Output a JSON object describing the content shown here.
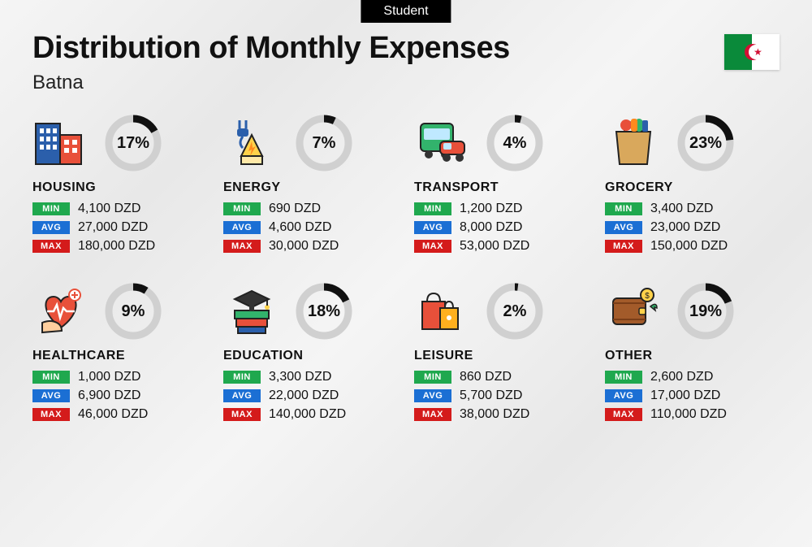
{
  "tag": "Student",
  "title": "Distribution of Monthly Expenses",
  "subtitle": "Batna",
  "currency": "DZD",
  "labels": {
    "min": "MIN",
    "avg": "AVG",
    "max": "MAX"
  },
  "colors": {
    "min": "#1fa84e",
    "avg": "#1b6fd4",
    "max": "#d41b1b",
    "ring_fg": "#111111",
    "ring_bg": "#d0d0d0",
    "text": "#111111",
    "background": "#f0f0f0"
  },
  "ring": {
    "radius": 30,
    "stroke_width": 9,
    "font_size": 20
  },
  "flag": {
    "left_color": "#0a8a3a",
    "right_color": "#ffffff",
    "emblem_color": "#d21034"
  },
  "categories": [
    {
      "key": "housing",
      "name": "HOUSING",
      "percent": 17,
      "min": "4,100",
      "avg": "27,000",
      "max": "180,000"
    },
    {
      "key": "energy",
      "name": "ENERGY",
      "percent": 7,
      "min": "690",
      "avg": "4,600",
      "max": "30,000"
    },
    {
      "key": "transport",
      "name": "TRANSPORT",
      "percent": 4,
      "min": "1,200",
      "avg": "8,000",
      "max": "53,000"
    },
    {
      "key": "grocery",
      "name": "GROCERY",
      "percent": 23,
      "min": "3,400",
      "avg": "23,000",
      "max": "150,000"
    },
    {
      "key": "healthcare",
      "name": "HEALTHCARE",
      "percent": 9,
      "min": "1,000",
      "avg": "6,900",
      "max": "46,000"
    },
    {
      "key": "education",
      "name": "EDUCATION",
      "percent": 18,
      "min": "3,300",
      "avg": "22,000",
      "max": "140,000"
    },
    {
      "key": "leisure",
      "name": "LEISURE",
      "percent": 2,
      "min": "860",
      "avg": "5,700",
      "max": "38,000"
    },
    {
      "key": "other",
      "name": "OTHER",
      "percent": 19,
      "min": "2,600",
      "avg": "17,000",
      "max": "110,000"
    }
  ]
}
